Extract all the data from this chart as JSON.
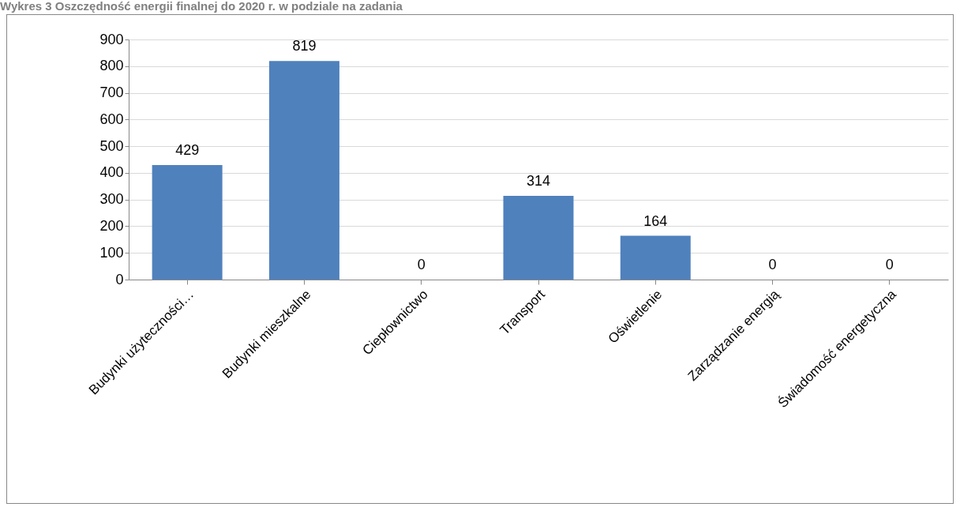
{
  "chart_data": {
    "type": "bar",
    "title": "Wykres 3 Oszczędność energii finalnej do 2020 r. w podziale na zadania",
    "categories": [
      "Budynki użyteczności…",
      "Budynki mieszkalne",
      "Ciepłownictwo",
      "Transport",
      "Oświetlenie",
      "Zarządzanie energią",
      "Świadomość energetyczna"
    ],
    "values": [
      429,
      819,
      0,
      314,
      164,
      0,
      0
    ],
    "color": "#4f81bd",
    "ylim": [
      0,
      900
    ],
    "yticks": [
      0,
      100,
      200,
      300,
      400,
      500,
      600,
      700,
      800,
      900
    ],
    "grid": "y",
    "data_labels": true
  }
}
